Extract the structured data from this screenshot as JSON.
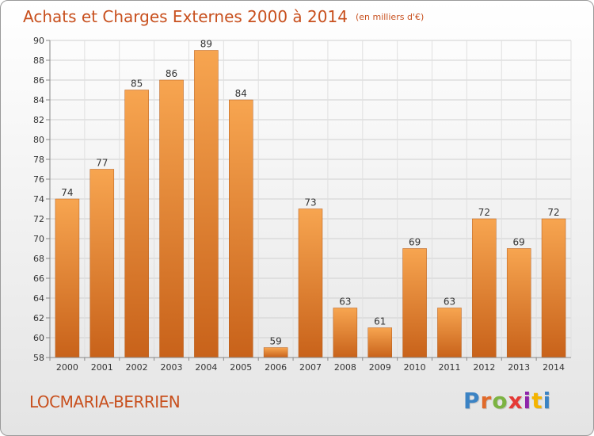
{
  "header": {
    "title": "Achats et Charges Externes 2000 à 2014",
    "unit": "(en milliers d'€)"
  },
  "footer": {
    "commune": "LOCMARIA-BERRIEN",
    "logo_letters": [
      "P",
      "r",
      "o",
      "x",
      "i",
      "t",
      "i"
    ]
  },
  "colors": {
    "accent": "#c8501e",
    "bar_light": "#f7a550",
    "bar_dark": "#c8621a",
    "logo": [
      "#3b83c4",
      "#e06a2a",
      "#7cb342",
      "#e53935",
      "#8e24aa",
      "#f4b400",
      "#3b83c4"
    ]
  },
  "chart_data": {
    "type": "bar",
    "categories": [
      "2000",
      "2001",
      "2002",
      "2003",
      "2004",
      "2005",
      "2006",
      "2007",
      "2008",
      "2009",
      "2010",
      "2011",
      "2012",
      "2013",
      "2014"
    ],
    "values": [
      74,
      77,
      85,
      86,
      89,
      84,
      59,
      73,
      63,
      61,
      69,
      63,
      72,
      69,
      72
    ],
    "ylim": [
      58,
      90
    ],
    "yticks": [
      58,
      60,
      62,
      64,
      66,
      68,
      70,
      72,
      74,
      76,
      78,
      80,
      82,
      84,
      86,
      88,
      90
    ],
    "grid": true,
    "data_labels": true
  }
}
